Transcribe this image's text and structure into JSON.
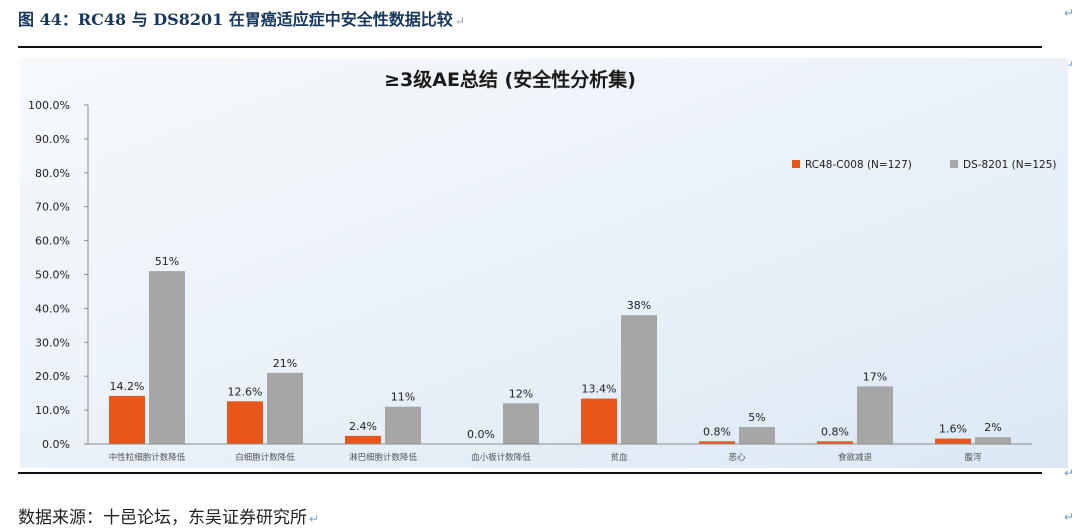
{
  "figure_title": "图 44：RC48 与 DS8201 在胃癌适应症中安全性数据比较",
  "source_text": "数据来源：十邑论坛，东吴证券研究所",
  "paragraph_mark": "↵",
  "colors": {
    "title": "#17375e",
    "series_rc48": "#e8561a",
    "series_ds8201": "#a6a6a6",
    "axis": "#8c8c8c"
  },
  "chart_data": {
    "type": "bar",
    "title": "≥3级AE总结 (安全性分析集)",
    "categories": [
      "中性粒细胞计数降低",
      "白细胞计数降低",
      "淋巴细胞计数降低",
      "血小板计数降低",
      "贫血",
      "恶心",
      "食欲减退",
      "腹泻"
    ],
    "series": [
      {
        "name": "RC48-C008 (N=127)",
        "values": [
          14.2,
          12.6,
          2.4,
          0.0,
          13.4,
          0.8,
          0.8,
          1.6
        ],
        "labels": [
          "14.2%",
          "12.6%",
          "2.4%",
          "0.0%",
          "13.4%",
          "0.8%",
          "0.8%",
          "1.6%"
        ],
        "color": "#e8561a"
      },
      {
        "name": "DS-8201 (N=125)",
        "values": [
          51,
          21,
          11,
          12,
          38,
          5,
          17,
          2
        ],
        "labels": [
          "51%",
          "21%",
          "11%",
          "12%",
          "38%",
          "5%",
          "17%",
          "2%"
        ],
        "color": "#a6a6a6"
      }
    ],
    "ylim": [
      0,
      100
    ],
    "yticks": [
      "0.0%",
      "10.0%",
      "20.0%",
      "30.0%",
      "40.0%",
      "50.0%",
      "60.0%",
      "70.0%",
      "80.0%",
      "90.0%",
      "100.0%"
    ],
    "grid": false,
    "legend_position": "top-right"
  }
}
